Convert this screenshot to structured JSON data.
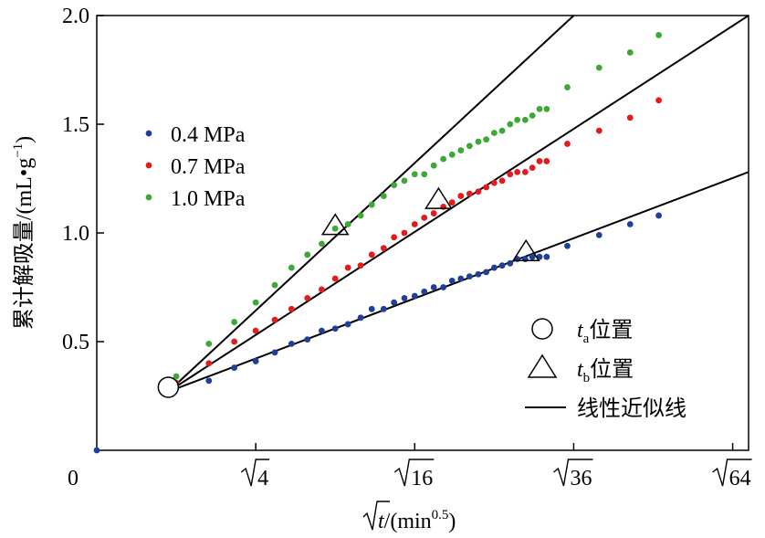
{
  "chart_data": {
    "type": "scatter",
    "xlabel": {
      "prefix": "√",
      "var": "t",
      "slash": "/(min",
      "sup": "0.5",
      "close": ")"
    },
    "ylabel": {
      "text": "累计解吸量/(mL•g",
      "sup": "−1",
      "close": ")"
    },
    "xlim": [
      0,
      8.2
    ],
    "ylim": [
      0,
      2.0
    ],
    "x_ticks": [
      {
        "value": 0,
        "label": "0",
        "radical": false
      },
      {
        "value": 2,
        "label": "4",
        "radical": true
      },
      {
        "value": 4,
        "label": "16",
        "radical": true
      },
      {
        "value": 6,
        "label": "36",
        "radical": true
      },
      {
        "value": 8,
        "label": "64",
        "radical": true
      }
    ],
    "y_ticks": [
      {
        "value": 0.5,
        "label": "0.5"
      },
      {
        "value": 1.0,
        "label": "1.0"
      },
      {
        "value": 1.5,
        "label": "1.5"
      },
      {
        "value": 2.0,
        "label": "2.0"
      }
    ],
    "grid": false,
    "legend_position": "left",
    "series": [
      {
        "name": "0.4 MPa",
        "color": "#1f3f9a",
        "points": [
          [
            0,
            0
          ],
          [
            1.0,
            0.29
          ],
          [
            1.41,
            0.32
          ],
          [
            1.73,
            0.38
          ],
          [
            2.0,
            0.41
          ],
          [
            2.24,
            0.45
          ],
          [
            2.45,
            0.49
          ],
          [
            2.65,
            0.51
          ],
          [
            2.83,
            0.55
          ],
          [
            3.0,
            0.56
          ],
          [
            3.16,
            0.58
          ],
          [
            3.32,
            0.61
          ],
          [
            3.46,
            0.65
          ],
          [
            3.61,
            0.65
          ],
          [
            3.74,
            0.68
          ],
          [
            3.87,
            0.7
          ],
          [
            4.0,
            0.71
          ],
          [
            4.12,
            0.73
          ],
          [
            4.24,
            0.75
          ],
          [
            4.36,
            0.75
          ],
          [
            4.47,
            0.78
          ],
          [
            4.58,
            0.79
          ],
          [
            4.69,
            0.8
          ],
          [
            4.8,
            0.81
          ],
          [
            4.9,
            0.82
          ],
          [
            5.0,
            0.84
          ],
          [
            5.1,
            0.85
          ],
          [
            5.2,
            0.86
          ],
          [
            5.29,
            0.88
          ],
          [
            5.39,
            0.88
          ],
          [
            5.48,
            0.89
          ],
          [
            5.57,
            0.89
          ],
          [
            5.66,
            0.89
          ],
          [
            5.92,
            0.94
          ],
          [
            6.32,
            0.99
          ],
          [
            6.71,
            1.04
          ],
          [
            7.07,
            1.08
          ]
        ]
      },
      {
        "name": "0.7 MPa",
        "color": "#e41a1c",
        "points": [
          [
            1.0,
            0.31
          ],
          [
            1.41,
            0.4
          ],
          [
            1.73,
            0.5
          ],
          [
            2.0,
            0.55
          ],
          [
            2.24,
            0.6
          ],
          [
            2.45,
            0.65
          ],
          [
            2.65,
            0.7
          ],
          [
            2.83,
            0.74
          ],
          [
            3.0,
            0.79
          ],
          [
            3.16,
            0.84
          ],
          [
            3.32,
            0.85
          ],
          [
            3.46,
            0.9
          ],
          [
            3.61,
            0.93
          ],
          [
            3.74,
            0.98
          ],
          [
            3.87,
            1.0
          ],
          [
            4.0,
            1.04
          ],
          [
            4.12,
            1.07
          ],
          [
            4.24,
            1.09
          ],
          [
            4.36,
            1.12
          ],
          [
            4.47,
            1.14
          ],
          [
            4.58,
            1.17
          ],
          [
            4.69,
            1.18
          ],
          [
            4.8,
            1.19
          ],
          [
            4.9,
            1.21
          ],
          [
            5.0,
            1.23
          ],
          [
            5.1,
            1.24
          ],
          [
            5.2,
            1.27
          ],
          [
            5.29,
            1.28
          ],
          [
            5.39,
            1.28
          ],
          [
            5.48,
            1.3
          ],
          [
            5.57,
            1.33
          ],
          [
            5.66,
            1.33
          ],
          [
            5.92,
            1.41
          ],
          [
            6.32,
            1.47
          ],
          [
            6.71,
            1.53
          ],
          [
            7.07,
            1.61
          ]
        ]
      },
      {
        "name": "1.0 MPa",
        "color": "#3aaa35",
        "points": [
          [
            1.0,
            0.34
          ],
          [
            1.41,
            0.49
          ],
          [
            1.73,
            0.59
          ],
          [
            2.0,
            0.68
          ],
          [
            2.24,
            0.76
          ],
          [
            2.45,
            0.84
          ],
          [
            2.65,
            0.9
          ],
          [
            2.83,
            0.95
          ],
          [
            3.0,
            1.02
          ],
          [
            3.16,
            1.04
          ],
          [
            3.32,
            1.08
          ],
          [
            3.46,
            1.13
          ],
          [
            3.61,
            1.17
          ],
          [
            3.74,
            1.22
          ],
          [
            3.87,
            1.24
          ],
          [
            4.0,
            1.27
          ],
          [
            4.12,
            1.27
          ],
          [
            4.24,
            1.31
          ],
          [
            4.36,
            1.34
          ],
          [
            4.47,
            1.36
          ],
          [
            4.58,
            1.38
          ],
          [
            4.69,
            1.4
          ],
          [
            4.8,
            1.42
          ],
          [
            4.9,
            1.43
          ],
          [
            5.0,
            1.46
          ],
          [
            5.1,
            1.47
          ],
          [
            5.2,
            1.5
          ],
          [
            5.29,
            1.52
          ],
          [
            5.39,
            1.52
          ],
          [
            5.48,
            1.54
          ],
          [
            5.57,
            1.57
          ],
          [
            5.66,
            1.57
          ],
          [
            5.92,
            1.67
          ],
          [
            6.32,
            1.76
          ],
          [
            6.71,
            1.83
          ],
          [
            7.07,
            1.91
          ]
        ]
      }
    ],
    "fit_lines": [
      {
        "from": [
          0.9,
          0.27
        ],
        "to": [
          8.2,
          1.28
        ]
      },
      {
        "from": [
          0.9,
          0.27
        ],
        "to": [
          8.2,
          2.0
        ]
      },
      {
        "from": [
          0.9,
          0.27
        ],
        "to": [
          6.0,
          2.0
        ]
      }
    ],
    "ta_marker": [
      0.9,
      0.29
    ],
    "tb_markers": [
      [
        3.0,
        1.03
      ],
      [
        4.3,
        1.15
      ],
      [
        5.4,
        0.91
      ]
    ],
    "legend_series": [
      "0.4 MPa",
      "0.7 MPa",
      "1.0 MPa"
    ],
    "legend_markers": [
      {
        "type": "circle",
        "italic": "t",
        "sub": "a",
        "text": "位置"
      },
      {
        "type": "triangle",
        "italic": "t",
        "sub": "b",
        "text": "位置"
      },
      {
        "type": "line",
        "text": "线性近似线"
      }
    ]
  }
}
